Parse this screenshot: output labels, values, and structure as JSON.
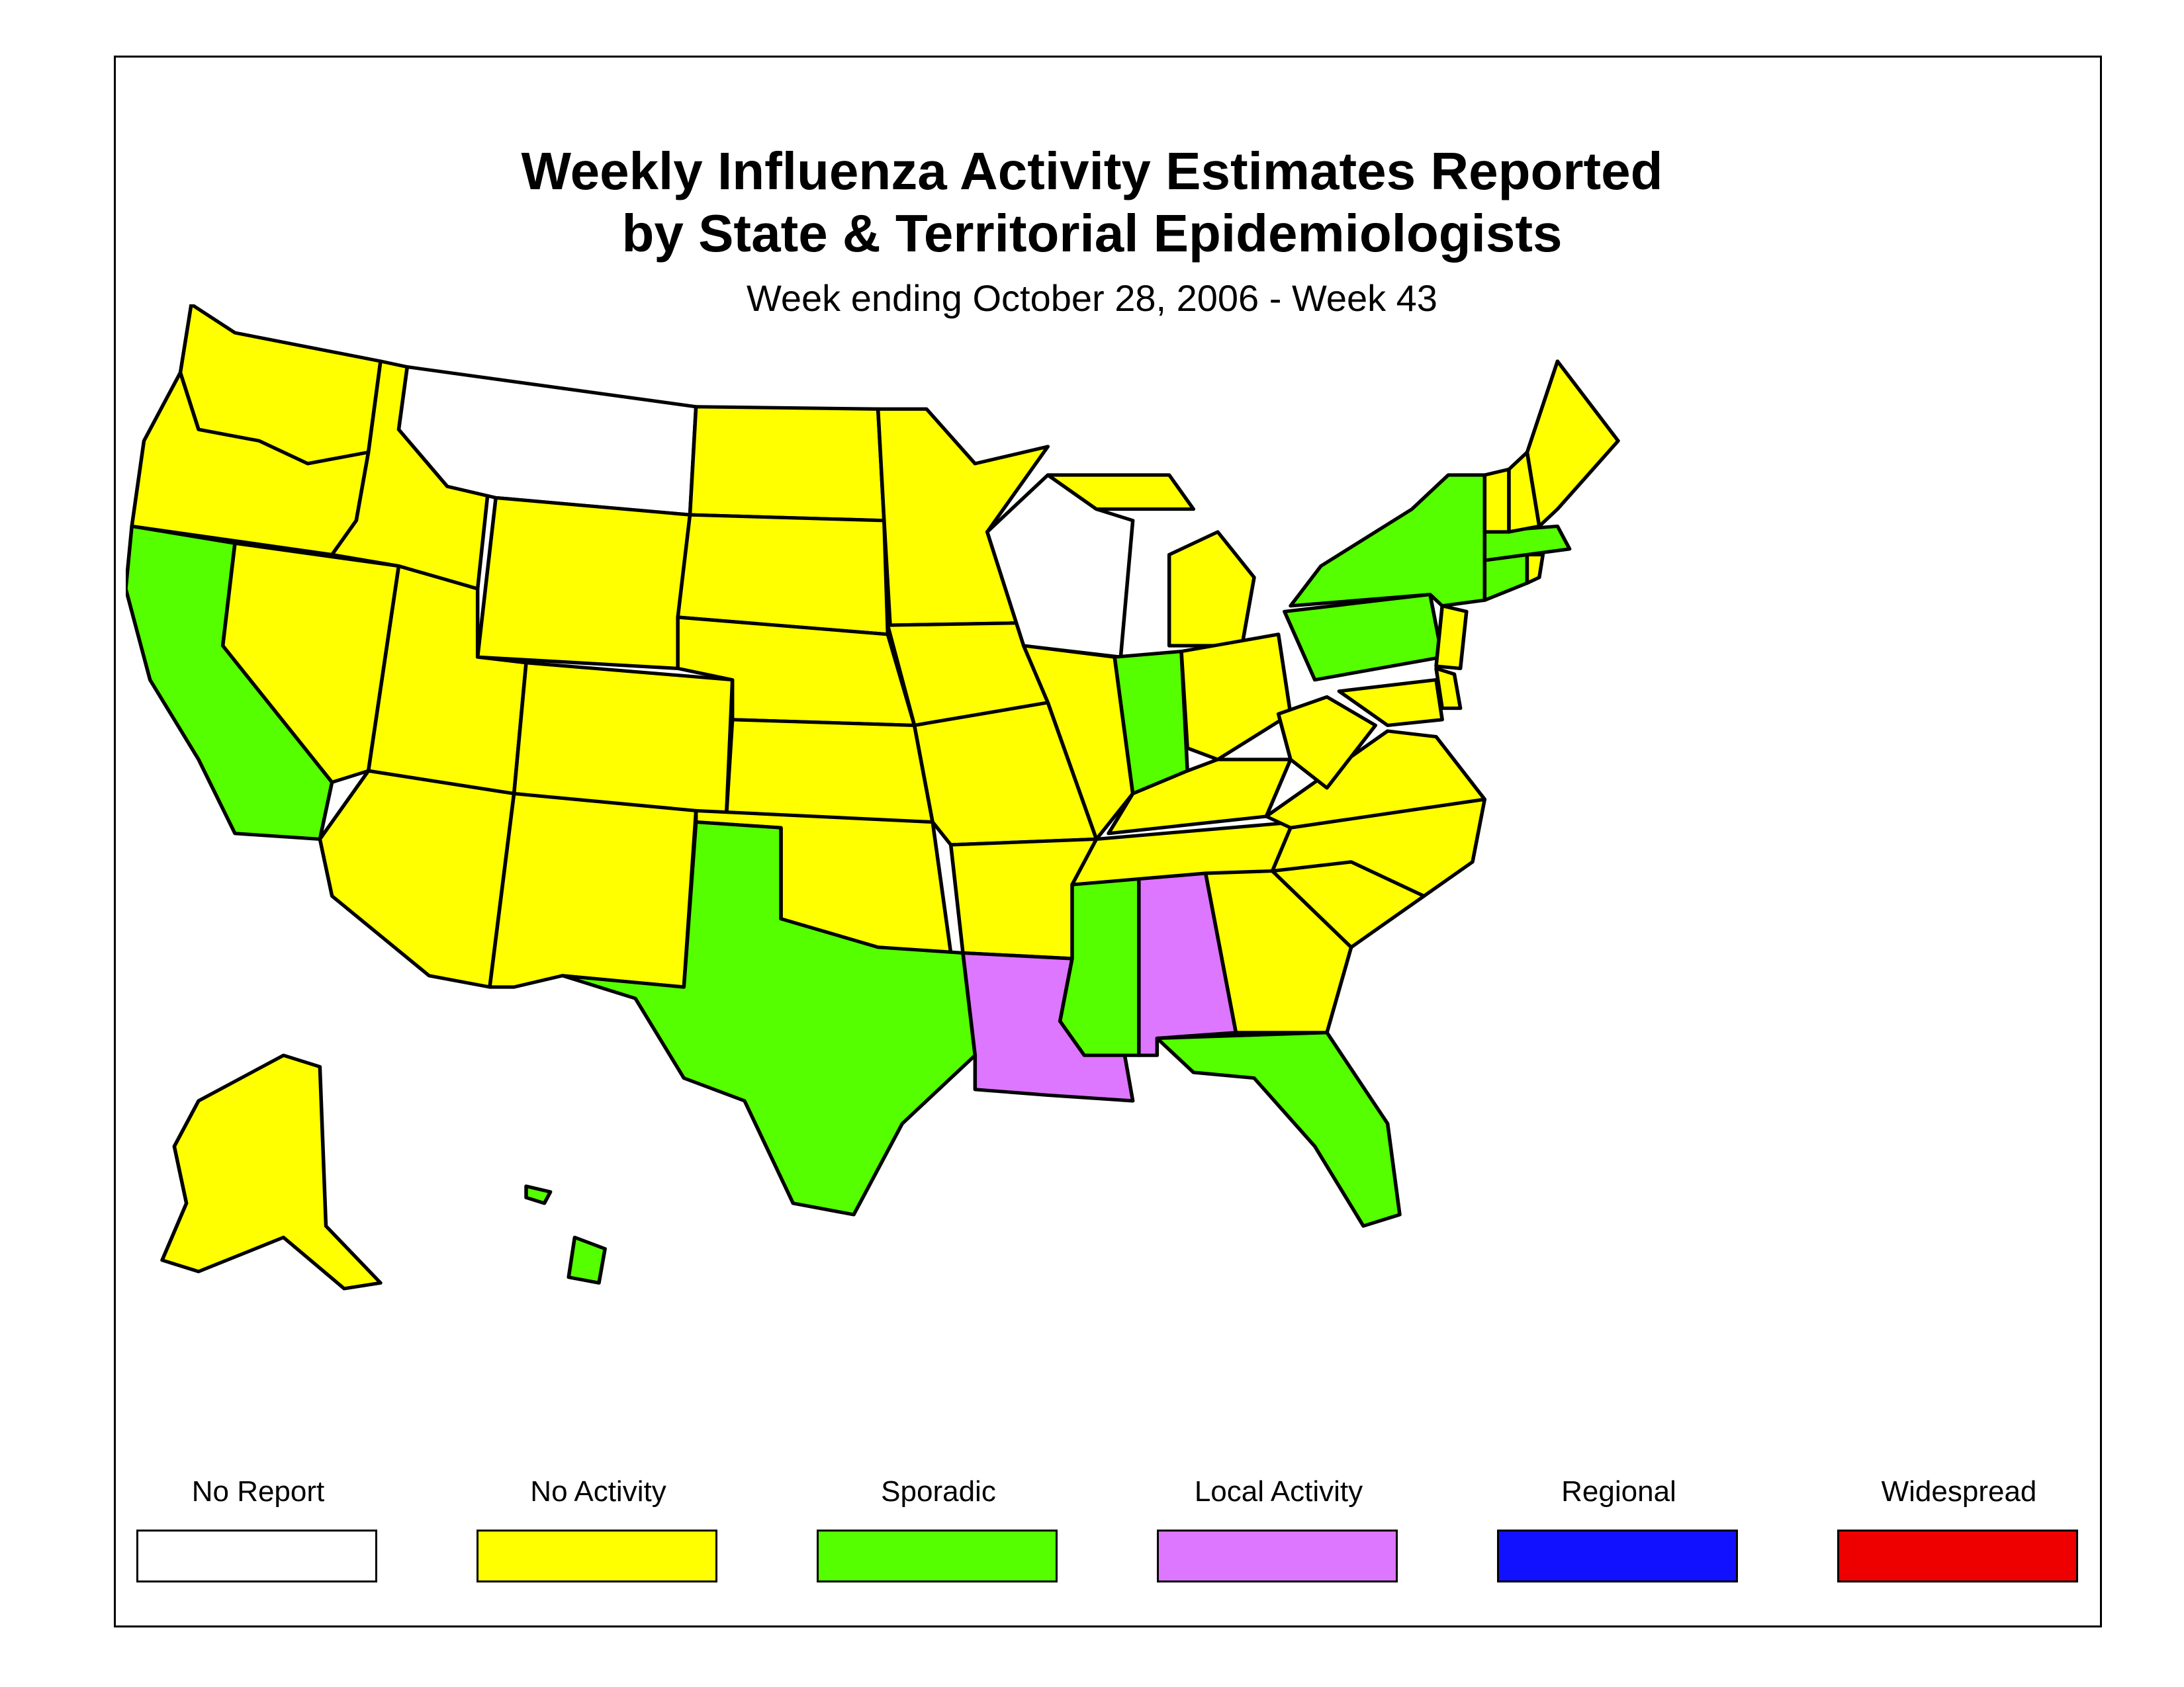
{
  "title_line1": "Weekly Influenza Activity Estimates Reported",
  "title_line2": "by State & Territorial Epidemiologists",
  "subtitle": "Week ending October 28, 2006 - Week 43",
  "colors": {
    "no_report": "#ffffff",
    "no_activity": "#ffff00",
    "sporadic": "#55ff00",
    "local_activity": "#dd77ff",
    "regional": "#1111ff",
    "widespread": "#ee0000"
  },
  "legend": [
    {
      "label": "No Report",
      "color": "#ffffff"
    },
    {
      "label": "No Activity",
      "color": "#ffff00"
    },
    {
      "label": "Sporadic",
      "color": "#55ff00"
    },
    {
      "label": "Local Activity",
      "color": "#dd77ff"
    },
    {
      "label": "Regional",
      "color": "#1111ff"
    },
    {
      "label": "Widespread",
      "color": "#ee0000"
    }
  ],
  "states": {
    "Washington": "No Activity",
    "Oregon": "No Activity",
    "California": "Sporadic",
    "Nevada": "No Activity",
    "Idaho": "No Activity",
    "Montana": "No Report",
    "Wyoming": "No Activity",
    "Utah": "No Activity",
    "Arizona": "No Activity",
    "Colorado": "No Activity",
    "New Mexico": "No Activity",
    "North Dakota": "No Activity",
    "South Dakota": "No Activity",
    "Nebraska": "No Activity",
    "Kansas": "No Activity",
    "Oklahoma": "No Activity",
    "Texas": "Sporadic",
    "Minnesota": "No Activity",
    "Iowa": "No Activity",
    "Missouri": "No Activity",
    "Arkansas": "No Activity",
    "Louisiana": "Local Activity",
    "Wisconsin": "No Report",
    "Illinois": "No Activity",
    "Michigan": "No Activity",
    "Indiana": "Sporadic",
    "Ohio": "No Activity",
    "Kentucky": "No Activity",
    "Tennessee": "No Activity",
    "Mississippi": "Sporadic",
    "Alabama": "Local Activity",
    "Georgia": "No Activity",
    "Florida": "Sporadic",
    "South Carolina": "No Activity",
    "North Carolina": "No Activity",
    "Virginia": "No Activity",
    "West Virginia": "No Activity",
    "Maryland": "No Activity",
    "Delaware": "No Activity",
    "Pennsylvania": "Sporadic",
    "New Jersey": "No Activity",
    "New York": "Sporadic",
    "Connecticut": "Sporadic",
    "Rhode Island": "No Activity",
    "Massachusetts": "Sporadic",
    "Vermont": "No Activity",
    "New Hampshire": "No Activity",
    "Maine": "No Activity",
    "Alaska": "No Activity",
    "Hawaii": "Sporadic"
  }
}
